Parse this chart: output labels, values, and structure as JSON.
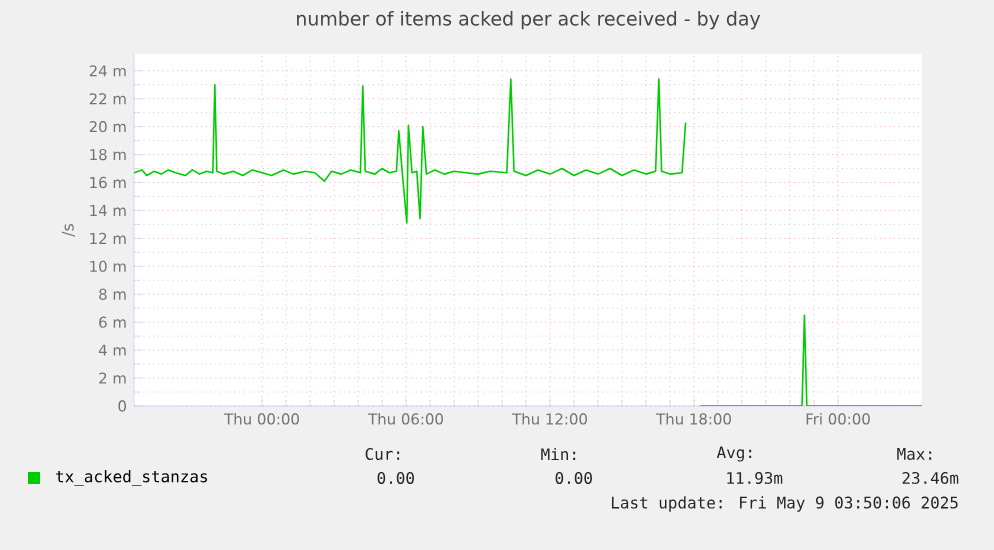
{
  "chart_data": {
    "type": "line",
    "title": "number of items acked per ack received - by day",
    "ylabel": "/s",
    "x": [
      "2025-05-07T18:40",
      "2025-05-07T19:00",
      "2025-05-07T19:12",
      "2025-05-07T19:30",
      "2025-05-07T19:48",
      "2025-05-07T20:06",
      "2025-05-07T20:24",
      "2025-05-07T20:48",
      "2025-05-07T21:06",
      "2025-05-07T21:24",
      "2025-05-07T21:42",
      "2025-05-07T21:57",
      "2025-05-07T22:02",
      "2025-05-07T22:07",
      "2025-05-07T22:24",
      "2025-05-07T22:48",
      "2025-05-07T23:12",
      "2025-05-07T23:36",
      "2025-05-08T00:00",
      "2025-05-08T00:24",
      "2025-05-08T00:54",
      "2025-05-08T01:18",
      "2025-05-08T01:48",
      "2025-05-08T02:12",
      "2025-05-08T02:36",
      "2025-05-08T02:54",
      "2025-05-08T03:18",
      "2025-05-08T03:42",
      "2025-05-08T04:06",
      "2025-05-08T04:12",
      "2025-05-08T04:18",
      "2025-05-08T04:42",
      "2025-05-08T05:00",
      "2025-05-08T05:18",
      "2025-05-08T05:36",
      "2025-05-08T05:42",
      "2025-05-08T05:51",
      "2025-05-08T06:02",
      "2025-05-08T06:06",
      "2025-05-08T06:15",
      "2025-05-08T06:27",
      "2025-05-08T06:35",
      "2025-05-08T06:42",
      "2025-05-08T06:51",
      "2025-05-08T07:12",
      "2025-05-08T07:36",
      "2025-05-08T08:00",
      "2025-05-08T08:30",
      "2025-05-08T09:00",
      "2025-05-08T09:30",
      "2025-05-08T10:12",
      "2025-05-08T10:22",
      "2025-05-08T10:30",
      "2025-05-08T11:00",
      "2025-05-08T11:30",
      "2025-05-08T12:00",
      "2025-05-08T12:30",
      "2025-05-08T13:00",
      "2025-05-08T13:30",
      "2025-05-08T14:00",
      "2025-05-08T14:30",
      "2025-05-08T15:00",
      "2025-05-08T15:30",
      "2025-05-08T16:00",
      "2025-05-08T16:24",
      "2025-05-08T16:32",
      "2025-05-08T16:39",
      "2025-05-08T17:00",
      "2025-05-08T17:30",
      "2025-05-08T17:39",
      "2025-05-08T17:54",
      "2025-05-08T18:15",
      "2025-05-08T22:30",
      "2025-05-08T22:36",
      "2025-05-08T22:42",
      "2025-05-09T03:30"
    ],
    "series": [
      {
        "name": "tx_acked_stanzas",
        "color": "#00cc00",
        "values": [
          16.7,
          16.9,
          16.5,
          16.8,
          16.6,
          16.9,
          16.7,
          16.5,
          16.9,
          16.6,
          16.8,
          16.7,
          23.0,
          16.8,
          16.6,
          16.8,
          16.5,
          16.9,
          16.7,
          16.5,
          16.9,
          16.6,
          16.8,
          16.7,
          16.1,
          16.8,
          16.6,
          16.9,
          16.7,
          22.9,
          16.8,
          16.6,
          17.0,
          16.7,
          16.8,
          19.7,
          16.6,
          13.1,
          20.1,
          16.7,
          16.8,
          13.4,
          20.0,
          16.6,
          16.9,
          16.6,
          16.8,
          16.7,
          16.6,
          16.8,
          16.7,
          23.4,
          16.8,
          16.5,
          16.9,
          16.6,
          17.0,
          16.5,
          16.9,
          16.6,
          17.0,
          16.5,
          16.9,
          16.6,
          16.8,
          23.4,
          16.8,
          16.6,
          16.7,
          20.3,
          null,
          0,
          0,
          6.5,
          0,
          0
        ]
      }
    ],
    "xlim": [
      "2025-05-07T18:40",
      "2025-05-09T03:30"
    ],
    "xticks": [
      {
        "value": "2025-05-08T00:00",
        "label": "Thu 00:00"
      },
      {
        "value": "2025-05-08T06:00",
        "label": "Thu 06:00"
      },
      {
        "value": "2025-05-08T12:00",
        "label": "Thu 12:00"
      },
      {
        "value": "2025-05-08T18:00",
        "label": "Thu 18:00"
      },
      {
        "value": "2025-05-09T00:00",
        "label": "Fri 00:00"
      }
    ],
    "ylim": [
      0,
      25.2
    ],
    "yticks": [
      0,
      {
        "value": 2,
        "label": "2 m"
      },
      {
        "value": 4,
        "label": "4 m"
      },
      {
        "value": 6,
        "label": "6 m"
      },
      {
        "value": 8,
        "label": "8 m"
      },
      {
        "value": 10,
        "label": "10 m"
      },
      {
        "value": 12,
        "label": "12 m"
      },
      {
        "value": 14,
        "label": "14 m"
      },
      {
        "value": 16,
        "label": "16 m"
      },
      {
        "value": 18,
        "label": "18 m"
      },
      {
        "value": 20,
        "label": "20 m"
      },
      {
        "value": 22,
        "label": "22 m"
      },
      {
        "value": 24,
        "label": "24 m"
      }
    ],
    "grid": true,
    "legend": "bottom",
    "marker": "none",
    "line_style": "solid",
    "annotations": [
      "Cur:",
      "Min:",
      "Avg:",
      "Max:",
      "0.00",
      "0.00",
      "11.93m",
      "23.46m",
      "Last update: Fri May 9 03:50:06 2025"
    ]
  }
}
